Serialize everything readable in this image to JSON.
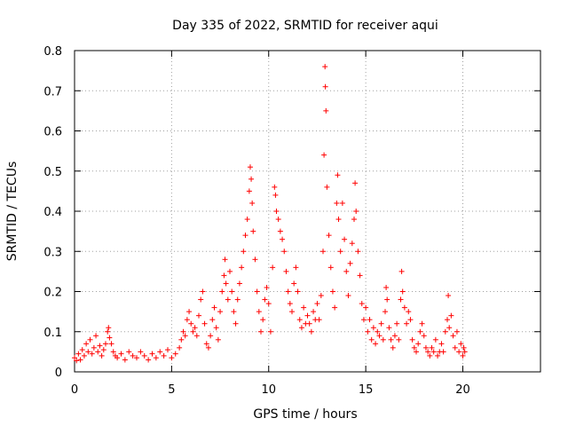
{
  "chart_data": {
    "type": "scatter",
    "title": "Day 335 of 2022, SRMTID for receiver aqui",
    "xlabel": "GPS time / hours",
    "ylabel": "SRMTID / TECUs",
    "xlim": [
      0,
      24
    ],
    "ylim": [
      0,
      0.8
    ],
    "xticks": [
      0,
      5,
      10,
      15,
      20
    ],
    "xtick_labels": [
      "0",
      "5",
      "10",
      "15",
      "20"
    ],
    "yticks": [
      0,
      0.1,
      0.2,
      0.3,
      0.4,
      0.5,
      0.6,
      0.7,
      0.8
    ],
    "ytick_labels": [
      "0",
      "0.1",
      "0.2",
      "0.3",
      "0.4",
      "0.5",
      "0.6",
      "0.7",
      "0.8"
    ],
    "grid": true,
    "marker": "+",
    "color": "#ff0000",
    "series": [
      {
        "name": "SRMTID",
        "points": [
          [
            0.0,
            0.035
          ],
          [
            0.1,
            0.028
          ],
          [
            0.2,
            0.045
          ],
          [
            0.3,
            0.03
          ],
          [
            0.4,
            0.055
          ],
          [
            0.5,
            0.04
          ],
          [
            0.6,
            0.07
          ],
          [
            0.7,
            0.05
          ],
          [
            0.8,
            0.08
          ],
          [
            0.9,
            0.045
          ],
          [
            1.0,
            0.06
          ],
          [
            1.1,
            0.09
          ],
          [
            1.2,
            0.05
          ],
          [
            1.3,
            0.065
          ],
          [
            1.4,
            0.04
          ],
          [
            1.5,
            0.055
          ],
          [
            1.6,
            0.07
          ],
          [
            1.7,
            0.1
          ],
          [
            1.75,
            0.11
          ],
          [
            1.8,
            0.085
          ],
          [
            1.9,
            0.07
          ],
          [
            2.0,
            0.05
          ],
          [
            2.1,
            0.04
          ],
          [
            2.2,
            0.035
          ],
          [
            2.4,
            0.045
          ],
          [
            2.6,
            0.03
          ],
          [
            2.8,
            0.05
          ],
          [
            3.0,
            0.04
          ],
          [
            3.2,
            0.035
          ],
          [
            3.4,
            0.05
          ],
          [
            3.6,
            0.04
          ],
          [
            3.8,
            0.03
          ],
          [
            4.0,
            0.045
          ],
          [
            4.2,
            0.035
          ],
          [
            4.4,
            0.05
          ],
          [
            4.6,
            0.04
          ],
          [
            4.8,
            0.055
          ],
          [
            5.0,
            0.035
          ],
          [
            5.2,
            0.045
          ],
          [
            5.4,
            0.06
          ],
          [
            5.5,
            0.08
          ],
          [
            5.6,
            0.1
          ],
          [
            5.7,
            0.09
          ],
          [
            5.8,
            0.13
          ],
          [
            5.9,
            0.15
          ],
          [
            6.0,
            0.12
          ],
          [
            6.1,
            0.1
          ],
          [
            6.2,
            0.11
          ],
          [
            6.3,
            0.09
          ],
          [
            6.4,
            0.14
          ],
          [
            6.5,
            0.18
          ],
          [
            6.6,
            0.2
          ],
          [
            6.7,
            0.12
          ],
          [
            6.8,
            0.07
          ],
          [
            6.9,
            0.06
          ],
          [
            7.0,
            0.09
          ],
          [
            7.1,
            0.13
          ],
          [
            7.2,
            0.16
          ],
          [
            7.3,
            0.11
          ],
          [
            7.4,
            0.08
          ],
          [
            7.5,
            0.15
          ],
          [
            7.6,
            0.2
          ],
          [
            7.7,
            0.24
          ],
          [
            7.75,
            0.28
          ],
          [
            7.8,
            0.22
          ],
          [
            7.9,
            0.18
          ],
          [
            8.0,
            0.25
          ],
          [
            8.1,
            0.2
          ],
          [
            8.2,
            0.15
          ],
          [
            8.3,
            0.12
          ],
          [
            8.4,
            0.18
          ],
          [
            8.5,
            0.22
          ],
          [
            8.6,
            0.26
          ],
          [
            8.7,
            0.3
          ],
          [
            8.8,
            0.34
          ],
          [
            8.9,
            0.38
          ],
          [
            9.0,
            0.45
          ],
          [
            9.05,
            0.51
          ],
          [
            9.1,
            0.48
          ],
          [
            9.15,
            0.42
          ],
          [
            9.2,
            0.35
          ],
          [
            9.3,
            0.28
          ],
          [
            9.4,
            0.2
          ],
          [
            9.5,
            0.15
          ],
          [
            9.6,
            0.1
          ],
          [
            9.7,
            0.13
          ],
          [
            9.8,
            0.18
          ],
          [
            9.9,
            0.21
          ],
          [
            10.0,
            0.17
          ],
          [
            10.1,
            0.1
          ],
          [
            10.2,
            0.26
          ],
          [
            10.3,
            0.46
          ],
          [
            10.35,
            0.44
          ],
          [
            10.4,
            0.4
          ],
          [
            10.5,
            0.38
          ],
          [
            10.6,
            0.35
          ],
          [
            10.7,
            0.33
          ],
          [
            10.8,
            0.3
          ],
          [
            10.9,
            0.25
          ],
          [
            11.0,
            0.2
          ],
          [
            11.1,
            0.17
          ],
          [
            11.2,
            0.15
          ],
          [
            11.3,
            0.22
          ],
          [
            11.4,
            0.26
          ],
          [
            11.5,
            0.2
          ],
          [
            11.6,
            0.13
          ],
          [
            11.7,
            0.11
          ],
          [
            11.8,
            0.16
          ],
          [
            11.9,
            0.12
          ],
          [
            12.0,
            0.14
          ],
          [
            12.1,
            0.12
          ],
          [
            12.2,
            0.1
          ],
          [
            12.3,
            0.15
          ],
          [
            12.4,
            0.13
          ],
          [
            12.5,
            0.17
          ],
          [
            12.6,
            0.13
          ],
          [
            12.7,
            0.19
          ],
          [
            12.8,
            0.3
          ],
          [
            12.85,
            0.54
          ],
          [
            12.9,
            0.76
          ],
          [
            12.92,
            0.71
          ],
          [
            12.95,
            0.65
          ],
          [
            13.0,
            0.46
          ],
          [
            13.1,
            0.34
          ],
          [
            13.2,
            0.26
          ],
          [
            13.3,
            0.2
          ],
          [
            13.4,
            0.16
          ],
          [
            13.5,
            0.42
          ],
          [
            13.55,
            0.49
          ],
          [
            13.6,
            0.38
          ],
          [
            13.7,
            0.3
          ],
          [
            13.8,
            0.42
          ],
          [
            13.9,
            0.33
          ],
          [
            14.0,
            0.25
          ],
          [
            14.1,
            0.19
          ],
          [
            14.2,
            0.27
          ],
          [
            14.3,
            0.32
          ],
          [
            14.4,
            0.38
          ],
          [
            14.45,
            0.47
          ],
          [
            14.5,
            0.4
          ],
          [
            14.6,
            0.3
          ],
          [
            14.7,
            0.24
          ],
          [
            14.8,
            0.17
          ],
          [
            14.9,
            0.13
          ],
          [
            15.0,
            0.16
          ],
          [
            15.1,
            0.1
          ],
          [
            15.2,
            0.13
          ],
          [
            15.3,
            0.08
          ],
          [
            15.4,
            0.11
          ],
          [
            15.5,
            0.07
          ],
          [
            15.6,
            0.1
          ],
          [
            15.7,
            0.09
          ],
          [
            15.8,
            0.12
          ],
          [
            15.9,
            0.08
          ],
          [
            16.0,
            0.15
          ],
          [
            16.05,
            0.21
          ],
          [
            16.1,
            0.18
          ],
          [
            16.2,
            0.11
          ],
          [
            16.3,
            0.08
          ],
          [
            16.4,
            0.06
          ],
          [
            16.5,
            0.09
          ],
          [
            16.6,
            0.12
          ],
          [
            16.7,
            0.08
          ],
          [
            16.8,
            0.18
          ],
          [
            16.85,
            0.25
          ],
          [
            16.9,
            0.2
          ],
          [
            17.0,
            0.16
          ],
          [
            17.1,
            0.12
          ],
          [
            17.2,
            0.15
          ],
          [
            17.3,
            0.13
          ],
          [
            17.4,
            0.08
          ],
          [
            17.5,
            0.06
          ],
          [
            17.6,
            0.05
          ],
          [
            17.7,
            0.07
          ],
          [
            17.8,
            0.1
          ],
          [
            17.9,
            0.12
          ],
          [
            18.0,
            0.09
          ],
          [
            18.1,
            0.06
          ],
          [
            18.2,
            0.05
          ],
          [
            18.3,
            0.04
          ],
          [
            18.4,
            0.06
          ],
          [
            18.5,
            0.05
          ],
          [
            18.6,
            0.08
          ],
          [
            18.7,
            0.04
          ],
          [
            18.8,
            0.05
          ],
          [
            18.9,
            0.07
          ],
          [
            19.0,
            0.05
          ],
          [
            19.1,
            0.1
          ],
          [
            19.2,
            0.13
          ],
          [
            19.25,
            0.19
          ],
          [
            19.3,
            0.11
          ],
          [
            19.4,
            0.14
          ],
          [
            19.5,
            0.09
          ],
          [
            19.6,
            0.06
          ],
          [
            19.7,
            0.1
          ],
          [
            19.8,
            0.05
          ],
          [
            19.9,
            0.07
          ],
          [
            20.0,
            0.04
          ],
          [
            20.05,
            0.06
          ],
          [
            20.1,
            0.05
          ]
        ]
      }
    ]
  }
}
